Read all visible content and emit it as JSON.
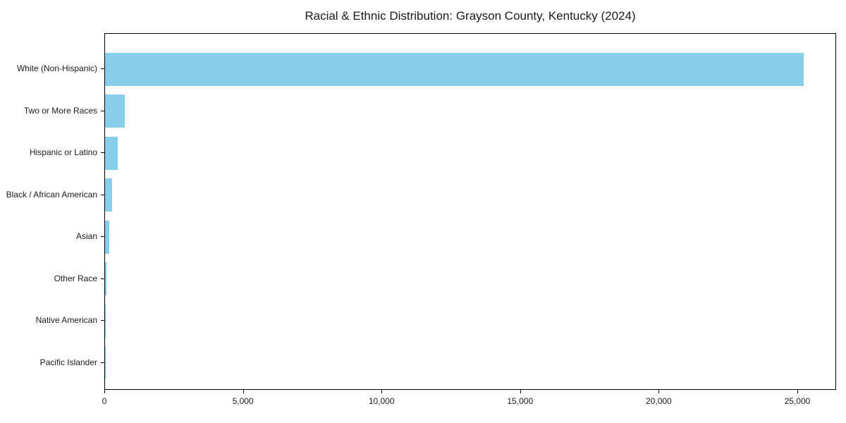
{
  "title": "Racial & Ethnic Distribution: Grayson County, Kentucky (2024)",
  "colors": {
    "bar": "#87CEEB",
    "axis": "#000000",
    "background": "#ffffff",
    "text": "#1a1a1a"
  },
  "chart_data": {
    "type": "bar",
    "orientation": "horizontal",
    "title": "Racial & Ethnic Distribution: Grayson County, Kentucky (2024)",
    "categories": [
      "White (Non-Hispanic)",
      "Two or More Races",
      "Hispanic or Latino",
      "Black / African American",
      "Asian",
      "Other Race",
      "Native American",
      "Pacific Islander"
    ],
    "values": [
      25200,
      700,
      450,
      260,
      150,
      50,
      25,
      10
    ],
    "xlabel": "",
    "ylabel": "",
    "xlim": [
      0,
      26400
    ],
    "xticks": {
      "values": [
        0,
        5000,
        10000,
        15000,
        20000,
        25000
      ],
      "labels": [
        "0",
        "5,000",
        "10,000",
        "15,000",
        "20,000",
        "25,000"
      ]
    },
    "bar_color": "#87CEEB",
    "grid": false,
    "legend": null
  }
}
